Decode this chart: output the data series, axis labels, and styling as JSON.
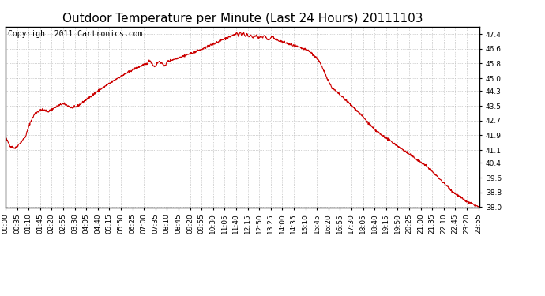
{
  "title": "Outdoor Temperature per Minute (Last 24 Hours) 20111103",
  "copyright_text": "Copyright 2011 Cartronics.com",
  "line_color": "#cc0000",
  "background_color": "#ffffff",
  "grid_color": "#aaaaaa",
  "ylim": [
    38.0,
    47.8
  ],
  "yticks": [
    38.0,
    38.8,
    39.6,
    40.4,
    41.1,
    41.9,
    42.7,
    43.5,
    44.3,
    45.0,
    45.8,
    46.6,
    47.4
  ],
  "title_fontsize": 11,
  "copyright_fontsize": 7,
  "tick_fontsize": 6.5,
  "line_width": 0.8,
  "xtick_every_minutes": 35
}
